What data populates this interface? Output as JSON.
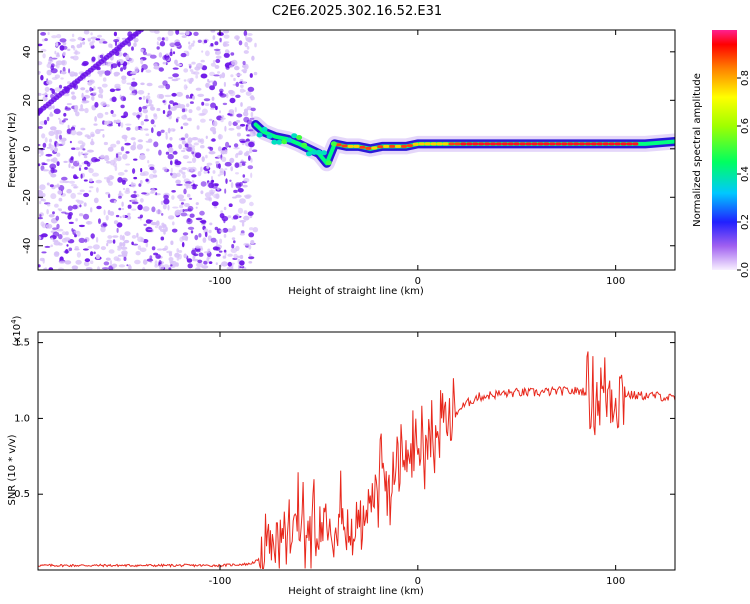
{
  "title": "C2E6.2025.302.16.52.E31",
  "colors": {
    "trace": "#e8281c",
    "scatter_dense": "#6a10e8",
    "scatter_light": "#d8c2f8",
    "frame": "#000000"
  },
  "chart_data": [
    {
      "type": "heatmap",
      "name": "spectrogram",
      "xlabel": "Height of straight line (km)",
      "ylabel": "Frequency (Hz)",
      "xlim": [
        -192,
        130
      ],
      "ylim": [
        -50,
        49
      ],
      "xticks": [
        -100,
        0,
        100
      ],
      "yticks": [
        -40,
        -20,
        0,
        20,
        40
      ],
      "xtick_labels": [
        "-100",
        "0",
        "100"
      ],
      "ytick_labels": [
        "-40",
        "-20",
        "0",
        "20",
        "40"
      ],
      "noise_region_x": [
        -192,
        -82
      ],
      "diagonal_streak": {
        "x": [
          -192,
          -140
        ],
        "y": [
          15,
          49
        ]
      },
      "signal_track": {
        "x": [
          -82,
          -78,
          -72,
          -66,
          -60,
          -55,
          -50,
          -46,
          -42,
          -36,
          -30,
          -24,
          -18,
          -12,
          -6,
          0,
          10,
          20,
          30,
          40,
          60,
          80,
          100,
          115,
          130
        ],
        "y": [
          10,
          7,
          5,
          4,
          2,
          0,
          -2,
          -6,
          2,
          1,
          1,
          0,
          1,
          1,
          1,
          2,
          2,
          2,
          2,
          2,
          2,
          2,
          2,
          2,
          3
        ]
      },
      "colorbar": {
        "label": "Normalized spectral amplitude",
        "range": [
          0,
          1
        ],
        "ticks": [
          0.0,
          0.2,
          0.4,
          0.6,
          0.8
        ],
        "tick_labels": [
          "0.0",
          "0.2",
          "0.4",
          "0.6",
          "0.8"
        ]
      }
    },
    {
      "type": "line",
      "name": "snr",
      "xlabel": "Height of straight line (km)",
      "ylabel": "SNR (10 * v/v)",
      "scale_label": "(x10",
      "scale_exponent": "4",
      "xlim": [
        -192,
        130
      ],
      "ylim": [
        0,
        1.57
      ],
      "xticks": [
        -100,
        0,
        100
      ],
      "yticks": [
        0.5,
        1.0,
        1.5
      ],
      "xtick_labels": [
        "-100",
        "0",
        "100"
      ],
      "ytick_labels": [
        "0.5",
        "1.0",
        "1.5"
      ],
      "series": [
        {
          "name": "SNR",
          "x": [
            -192,
            -180,
            -160,
            -140,
            -120,
            -100,
            -85,
            -78,
            -72,
            -66,
            -60,
            -55,
            -50,
            -45,
            -40,
            -35,
            -30,
            -25,
            -20,
            -15,
            -10,
            -5,
            0,
            5,
            10,
            15,
            20,
            25,
            30,
            40,
            50,
            60,
            70,
            80,
            85,
            90,
            95,
            100,
            105,
            110,
            120,
            130
          ],
          "y": [
            0.03,
            0.03,
            0.03,
            0.03,
            0.03,
            0.03,
            0.04,
            0.08,
            0.18,
            0.25,
            0.3,
            0.28,
            0.3,
            0.4,
            0.35,
            0.25,
            0.32,
            0.45,
            0.55,
            0.6,
            0.7,
            0.75,
            0.8,
            0.85,
            0.9,
            0.98,
            1.05,
            1.1,
            1.14,
            1.16,
            1.17,
            1.17,
            1.18,
            1.18,
            1.18,
            1.15,
            1.18,
            1.17,
            1.16,
            1.15,
            1.15,
            1.13
          ]
        }
      ]
    }
  ]
}
